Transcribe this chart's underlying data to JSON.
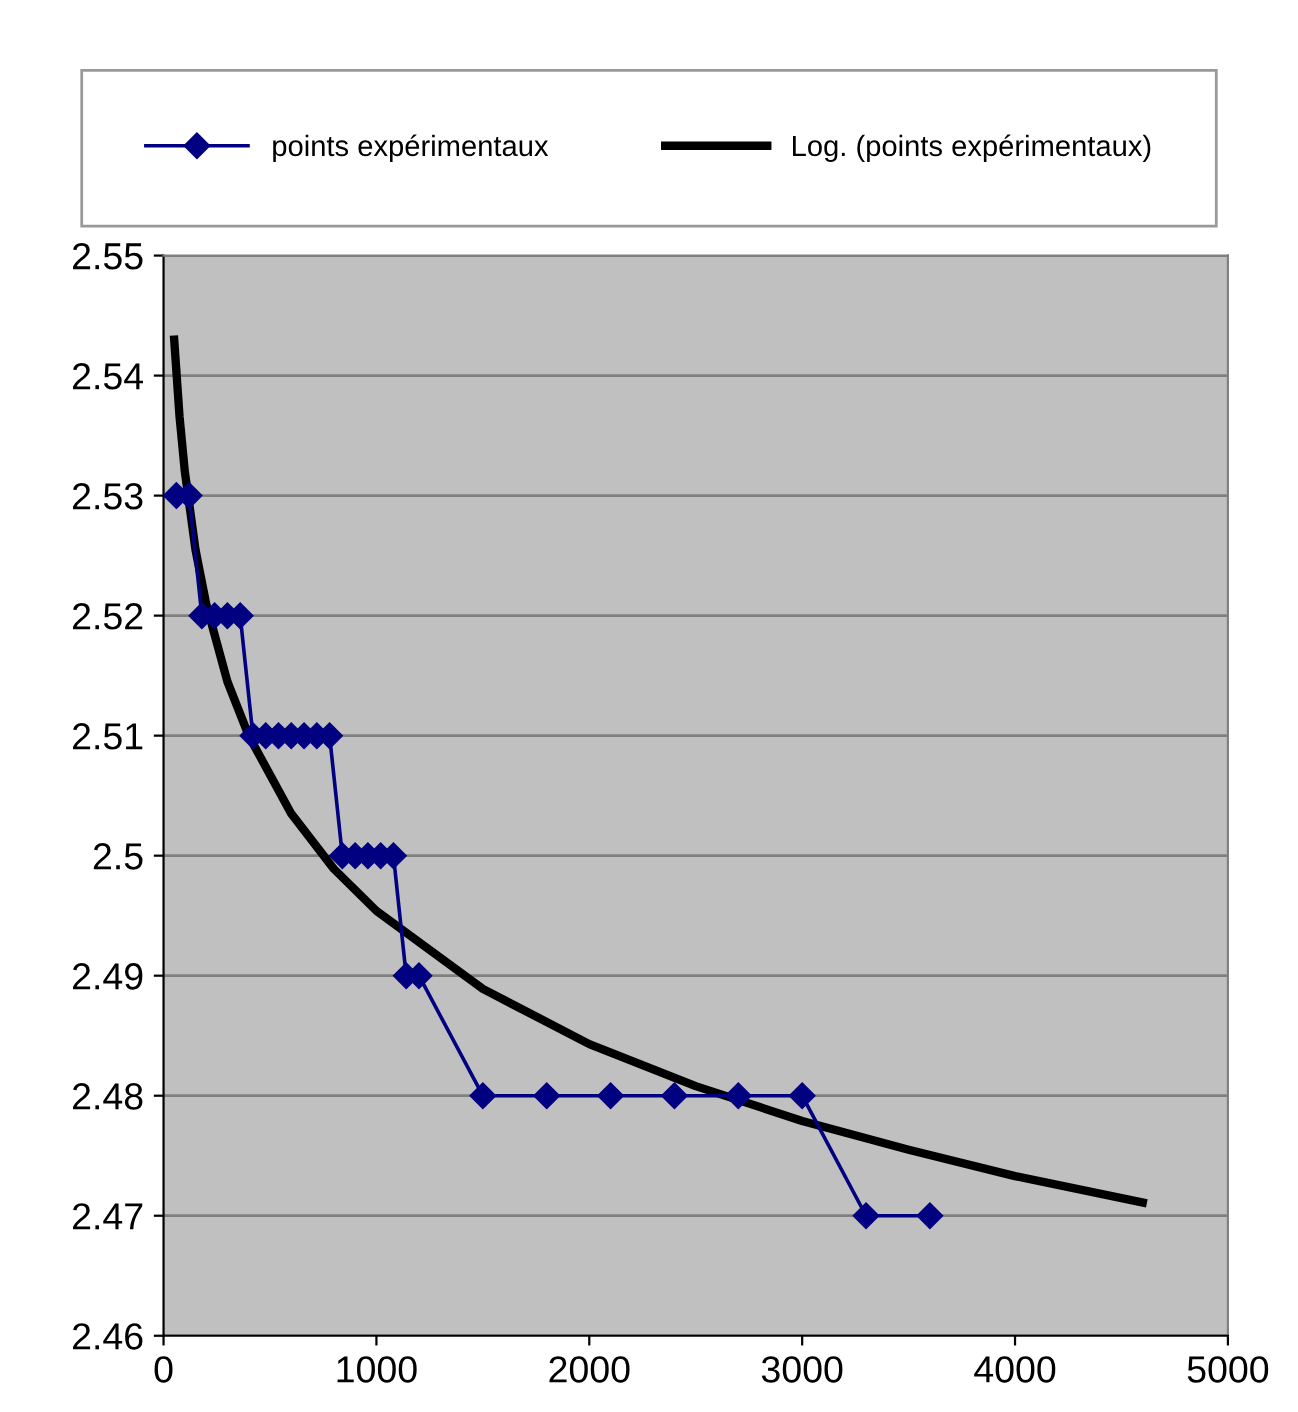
{
  "chart_data": {
    "type": "line",
    "xlim": [
      0,
      5000
    ],
    "xticks": [
      0,
      1000,
      2000,
      3000,
      4000,
      5000
    ],
    "ylim": [
      2.46,
      2.55
    ],
    "yticks": [
      {
        "value": 2.46,
        "label": "2.46"
      },
      {
        "value": 2.47,
        "label": "2.47"
      },
      {
        "value": 2.48,
        "label": "2.48"
      },
      {
        "value": 2.49,
        "label": "2.49"
      },
      {
        "value": 2.5,
        "label": "2.5"
      },
      {
        "value": 2.51,
        "label": "2.51"
      },
      {
        "value": 2.52,
        "label": "2.52"
      },
      {
        "value": 2.53,
        "label": "2.53"
      },
      {
        "value": 2.54,
        "label": "2.54"
      },
      {
        "value": 2.55,
        "label": "2.55"
      }
    ],
    "grid": "y",
    "legend": "top",
    "series": [
      {
        "name": "points expérimentaux",
        "color": "#000080",
        "marker": "diamond",
        "x": [
          60,
          120,
          180,
          240,
          300,
          360,
          420,
          480,
          540,
          600,
          660,
          720,
          780,
          840,
          900,
          960,
          1020,
          1080,
          1140,
          1200,
          1500,
          1800,
          2100,
          2400,
          2700,
          3000,
          3300,
          3600
        ],
        "values": [
          2.53,
          2.53,
          2.52,
          2.52,
          2.52,
          2.52,
          2.51,
          2.51,
          2.51,
          2.51,
          2.51,
          2.51,
          2.51,
          2.5,
          2.5,
          2.5,
          2.5,
          2.5,
          2.49,
          2.49,
          2.48,
          2.48,
          2.48,
          2.48,
          2.48,
          2.48,
          2.47,
          2.47
        ]
      },
      {
        "name": "Log. (points expérimentaux)",
        "color": "#000000",
        "marker": "none",
        "x": [
          50,
          75,
          100,
          150,
          200,
          300,
          400,
          600,
          800,
          1000,
          1500,
          2000,
          2500,
          3000,
          3500,
          4000,
          4600
        ],
        "values": [
          2.543,
          2.5366,
          2.532,
          2.5255,
          2.521,
          2.5145,
          2.51,
          2.5035,
          2.4989,
          2.4954,
          2.4889,
          2.4843,
          2.4808,
          2.4779,
          2.4755,
          2.4733,
          2.4711
        ]
      }
    ]
  }
}
